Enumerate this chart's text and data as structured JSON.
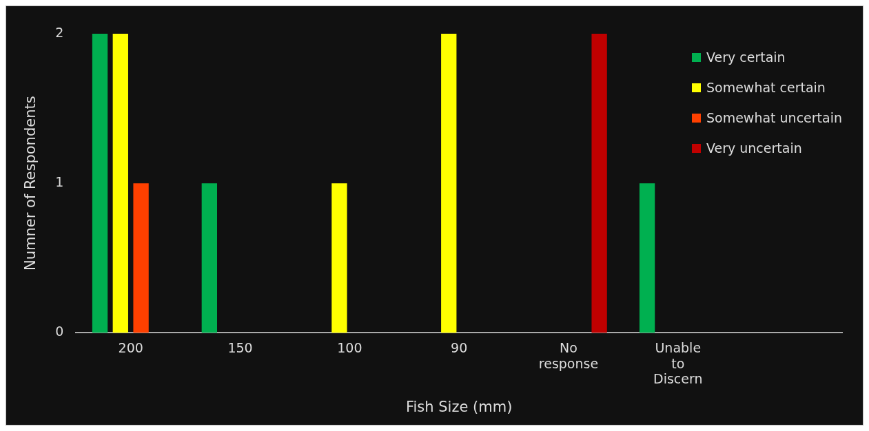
{
  "chart_data": {
    "type": "bar",
    "xlabel": "Fish Size (mm)",
    "ylabel": "Numner of Respondents",
    "categories": [
      "200",
      "150",
      "100",
      "90",
      "No response",
      "Unable to Discern",
      null
    ],
    "series": [
      {
        "name": "Very certain",
        "color": "#00b050",
        "values": [
          2,
          1,
          0,
          0,
          0,
          1,
          0
        ]
      },
      {
        "name": "Somewhat certain",
        "color": "#ffff00",
        "values": [
          2,
          0,
          1,
          2,
          0,
          0,
          0
        ]
      },
      {
        "name": "Somewhat uncertain",
        "color": "#ff4000",
        "values": [
          1,
          0,
          0,
          0,
          0,
          0,
          0
        ]
      },
      {
        "name": "Very uncertain",
        "color": "#c00000",
        "values": [
          0,
          0,
          0,
          0,
          2,
          0,
          0
        ]
      }
    ],
    "ylim": [
      0,
      2
    ],
    "yticks": [
      0,
      1,
      2
    ],
    "grid": false,
    "legend": "top right"
  }
}
